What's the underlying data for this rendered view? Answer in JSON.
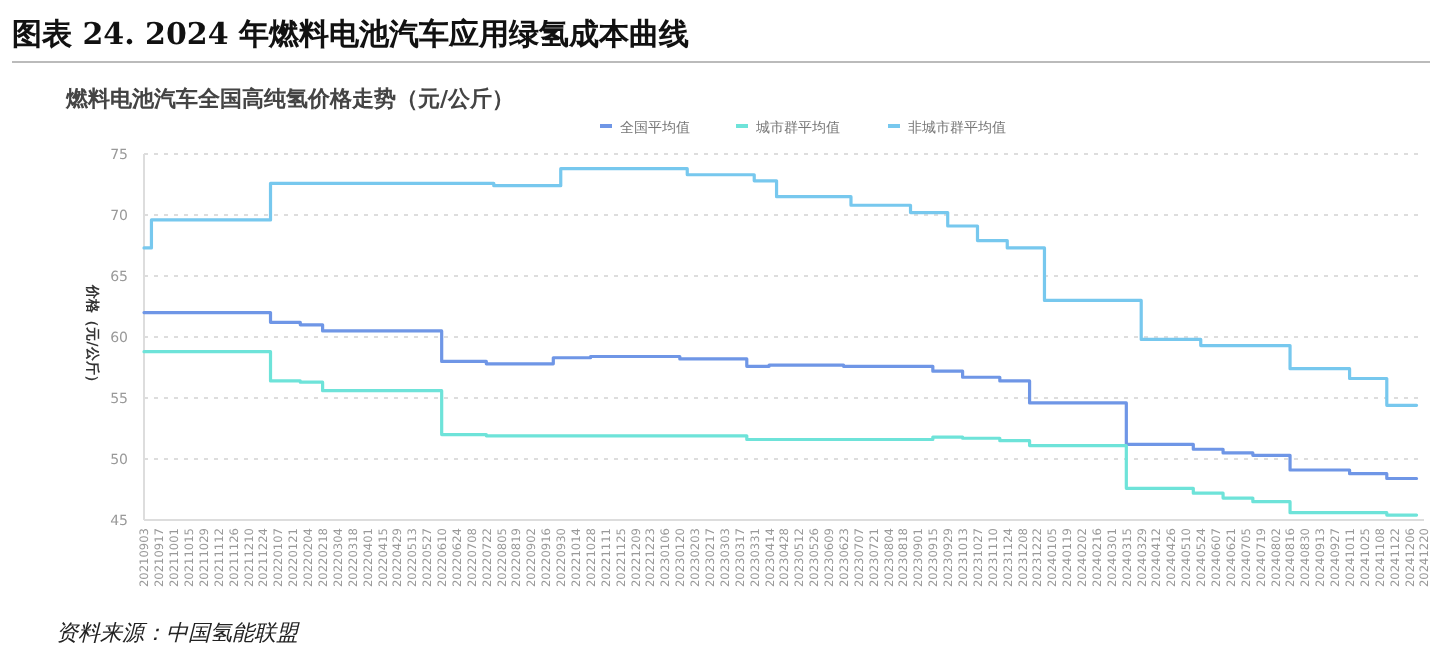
{
  "chart_data": {
    "type": "step",
    "title": "图表 24. 2024 年燃料电池汽车应用绿氢成本曲线",
    "subtitle": "燃料电池汽车全国高纯氢价格走势（元/公斤）",
    "ylabel": "价格（元/公斤）",
    "annotations": [
      "资料来源：中国氢能联盟"
    ],
    "ylim": [
      45,
      75
    ],
    "yticks": [
      45,
      50,
      55,
      60,
      65,
      70,
      75
    ],
    "xlim": [
      "2021-09-03",
      "2024-12-20"
    ],
    "xticks": [
      {
        "value": "2021-09-03",
        "label": "20210903"
      },
      {
        "value": "2021-09-17",
        "label": "20210917"
      },
      {
        "value": "2021-10-01",
        "label": "20211001"
      },
      {
        "value": "2021-10-15",
        "label": "20211015"
      },
      {
        "value": "2021-10-29",
        "label": "20211029"
      },
      {
        "value": "2021-11-12",
        "label": "20211112"
      },
      {
        "value": "2021-11-26",
        "label": "20211126"
      },
      {
        "value": "2021-12-10",
        "label": "20211210"
      },
      {
        "value": "2021-12-24",
        "label": "20211224"
      },
      {
        "value": "2022-01-07",
        "label": "20220107"
      },
      {
        "value": "2022-01-21",
        "label": "20220121"
      },
      {
        "value": "2022-02-04",
        "label": "20220204"
      },
      {
        "value": "2022-02-18",
        "label": "20220218"
      },
      {
        "value": "2022-03-04",
        "label": "20220304"
      },
      {
        "value": "2022-03-18",
        "label": "20220318"
      },
      {
        "value": "2022-04-01",
        "label": "20220401"
      },
      {
        "value": "2022-04-15",
        "label": "20220415"
      },
      {
        "value": "2022-04-29",
        "label": "20220429"
      },
      {
        "value": "2022-05-13",
        "label": "20220513"
      },
      {
        "value": "2022-05-27",
        "label": "20220527"
      },
      {
        "value": "2022-06-10",
        "label": "20220610"
      },
      {
        "value": "2022-06-24",
        "label": "20220624"
      },
      {
        "value": "2022-07-08",
        "label": "20220708"
      },
      {
        "value": "2022-07-22",
        "label": "20220722"
      },
      {
        "value": "2022-08-05",
        "label": "20220805"
      },
      {
        "value": "2022-08-19",
        "label": "20220819"
      },
      {
        "value": "2022-09-02",
        "label": "20220902"
      },
      {
        "value": "2022-09-16",
        "label": "20220916"
      },
      {
        "value": "2022-09-30",
        "label": "20220930"
      },
      {
        "value": "2022-10-14",
        "label": "20221014"
      },
      {
        "value": "2022-10-28",
        "label": "20221028"
      },
      {
        "value": "2022-11-11",
        "label": "20221111"
      },
      {
        "value": "2022-11-25",
        "label": "20221125"
      },
      {
        "value": "2022-12-09",
        "label": "20221209"
      },
      {
        "value": "2022-12-23",
        "label": "20221223"
      },
      {
        "value": "2023-01-06",
        "label": "20230106"
      },
      {
        "value": "2023-01-20",
        "label": "20230120"
      },
      {
        "value": "2023-02-03",
        "label": "20230203"
      },
      {
        "value": "2023-02-17",
        "label": "20230217"
      },
      {
        "value": "2023-03-03",
        "label": "20230303"
      },
      {
        "value": "2023-03-17",
        "label": "20230317"
      },
      {
        "value": "2023-03-31",
        "label": "20230331"
      },
      {
        "value": "2023-04-14",
        "label": "20230414"
      },
      {
        "value": "2023-04-28",
        "label": "20230428"
      },
      {
        "value": "2023-05-12",
        "label": "20230512"
      },
      {
        "value": "2023-05-26",
        "label": "20230526"
      },
      {
        "value": "2023-06-09",
        "label": "20230609"
      },
      {
        "value": "2023-06-23",
        "label": "20230623"
      },
      {
        "value": "2023-07-07",
        "label": "20230707"
      },
      {
        "value": "2023-07-21",
        "label": "20230721"
      },
      {
        "value": "2023-08-04",
        "label": "20230804"
      },
      {
        "value": "2023-08-18",
        "label": "20230818"
      },
      {
        "value": "2023-09-01",
        "label": "20230901"
      },
      {
        "value": "2023-09-15",
        "label": "20230915"
      },
      {
        "value": "2023-09-29",
        "label": "20230929"
      },
      {
        "value": "2023-10-13",
        "label": "20231013"
      },
      {
        "value": "2023-10-27",
        "label": "20231027"
      },
      {
        "value": "2023-11-10",
        "label": "20231110"
      },
      {
        "value": "2023-11-24",
        "label": "20231124"
      },
      {
        "value": "2023-12-08",
        "label": "20231208"
      },
      {
        "value": "2023-12-22",
        "label": "20231222"
      },
      {
        "value": "2024-01-05",
        "label": "20240105"
      },
      {
        "value": "2024-01-19",
        "label": "20240119"
      },
      {
        "value": "2024-02-02",
        "label": "20240202"
      },
      {
        "value": "2024-02-16",
        "label": "20240216"
      },
      {
        "value": "2024-03-01",
        "label": "20240301"
      },
      {
        "value": "2024-03-15",
        "label": "20240315"
      },
      {
        "value": "2024-03-29",
        "label": "20240329"
      },
      {
        "value": "2024-04-12",
        "label": "20240412"
      },
      {
        "value": "2024-04-26",
        "label": "20240426"
      },
      {
        "value": "2024-05-10",
        "label": "20240510"
      },
      {
        "value": "2024-05-24",
        "label": "20240524"
      },
      {
        "value": "2024-06-07",
        "label": "20240607"
      },
      {
        "value": "2024-06-21",
        "label": "20240621"
      },
      {
        "value": "2024-07-05",
        "label": "20240705"
      },
      {
        "value": "2024-07-19",
        "label": "20240719"
      },
      {
        "value": "2024-08-02",
        "label": "20240802"
      },
      {
        "value": "2024-08-16",
        "label": "20240816"
      },
      {
        "value": "2024-08-30",
        "label": "20240830"
      },
      {
        "value": "2024-09-13",
        "label": "20240913"
      },
      {
        "value": "2024-09-27",
        "label": "20240927"
      },
      {
        "value": "2024-10-11",
        "label": "20241011"
      },
      {
        "value": "2024-10-25",
        "label": "20241025"
      },
      {
        "value": "2024-11-08",
        "label": "20241108"
      },
      {
        "value": "2024-11-22",
        "label": "20241122"
      },
      {
        "value": "2024-12-06",
        "label": "20241206"
      },
      {
        "value": "2024-12-20",
        "label": "20241220"
      }
    ],
    "grid": "y",
    "legend": "top",
    "line_style": "solid",
    "marker": "none",
    "series": [
      {
        "name": "全国平均值",
        "color": "#6f96e6",
        "x": [
          "2021-09-03",
          "2021-12-31",
          "2022-01-28",
          "2022-02-18",
          "2022-06-10",
          "2022-07-22",
          "2022-09-23",
          "2022-10-28",
          "2023-01-20",
          "2023-03-24",
          "2023-04-14",
          "2023-06-23",
          "2023-09-15",
          "2023-10-13",
          "2023-11-17",
          "2023-12-15",
          "2024-03-15",
          "2024-05-17",
          "2024-06-14",
          "2024-07-12",
          "2024-08-16",
          "2024-10-11",
          "2024-11-15",
          "2024-12-13"
        ],
        "values": [
          62.0,
          61.2,
          61.0,
          60.5,
          58.0,
          57.8,
          58.3,
          58.4,
          58.2,
          57.6,
          57.7,
          57.6,
          57.2,
          56.7,
          56.4,
          54.6,
          51.2,
          50.8,
          50.5,
          50.3,
          49.1,
          48.8,
          48.4,
          48.4
        ]
      },
      {
        "name": "城市群平均值",
        "color": "#6ee3d9",
        "x": [
          "2021-09-03",
          "2021-12-31",
          "2022-01-28",
          "2022-02-18",
          "2022-06-10",
          "2022-07-22",
          "2023-03-24",
          "2023-09-15",
          "2023-10-13",
          "2023-11-17",
          "2023-12-15",
          "2024-03-15",
          "2024-05-17",
          "2024-06-14",
          "2024-07-12",
          "2024-08-16",
          "2024-11-15",
          "2024-12-13"
        ],
        "values": [
          58.8,
          56.4,
          56.3,
          55.6,
          52.0,
          51.9,
          51.6,
          51.8,
          51.7,
          51.5,
          51.1,
          47.6,
          47.2,
          46.8,
          46.5,
          45.6,
          45.4,
          45.4
        ]
      },
      {
        "name": "非城市群平均值",
        "color": "#77c8ee",
        "x": [
          "2021-09-03",
          "2021-09-10",
          "2021-12-31",
          "2022-07-29",
          "2022-09-30",
          "2023-01-27",
          "2023-03-31",
          "2023-04-21",
          "2023-06-30",
          "2023-08-25",
          "2023-09-29",
          "2023-10-27",
          "2023-11-24",
          "2023-12-29",
          "2024-03-29",
          "2024-05-24",
          "2024-08-16",
          "2024-10-11",
          "2024-11-15",
          "2024-12-13"
        ],
        "values": [
          67.3,
          69.6,
          72.6,
          72.4,
          73.8,
          73.3,
          72.8,
          71.5,
          70.8,
          70.2,
          69.1,
          67.9,
          67.3,
          63.0,
          59.8,
          59.3,
          57.4,
          56.6,
          54.4,
          54.4
        ]
      }
    ]
  }
}
